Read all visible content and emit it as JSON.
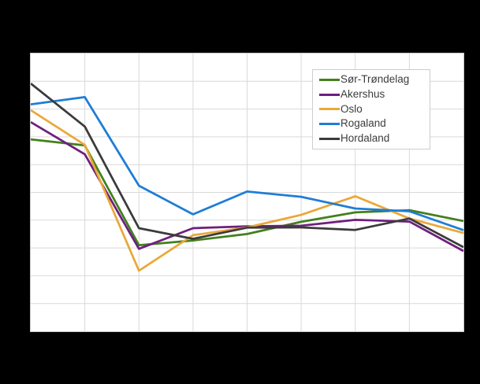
{
  "page": {
    "background_color": "#000000",
    "plot_background_color": "#ffffff",
    "grid_color": "#d9d9d9",
    "plot_border_color": "#c9c9c9",
    "legend_border_color": "#cccccc",
    "legend_text_color": "#3c3c3c"
  },
  "chart_data": {
    "type": "line",
    "title": "",
    "xlabel": "",
    "ylabel": "",
    "n_points": 9,
    "x_labels": [],
    "axis_tick_labels_visible": false,
    "values_unit": "gridline-units; 0 = bottom border, 10 = top border (no numeric tick labels are visible in the screenshot)",
    "ylim": [
      0,
      10
    ],
    "grid": true,
    "grid_x_divisions": 8,
    "grid_y_divisions": 10,
    "legend_position": "top-right",
    "line_width": 2.75,
    "series": [
      {
        "name": "Sør-Trøndelag",
        "color": "#43801e",
        "values": [
          6.91,
          6.69,
          3.1,
          3.27,
          3.5,
          3.94,
          4.28,
          4.36,
          3.97
        ]
      },
      {
        "name": "Akershus",
        "color": "#6f1e7f",
        "values": [
          7.53,
          6.37,
          2.97,
          3.71,
          3.78,
          3.8,
          4.01,
          3.95,
          2.89
        ]
      },
      {
        "name": "Oslo",
        "color": "#eaa838",
        "values": [
          7.96,
          6.71,
          2.18,
          3.46,
          3.74,
          4.19,
          4.86,
          4.06,
          3.54
        ]
      },
      {
        "name": "Rogaland",
        "color": "#1f7dd6",
        "values": [
          8.17,
          8.43,
          5.24,
          4.21,
          5.03,
          4.84,
          4.42,
          4.32,
          3.64
        ]
      },
      {
        "name": "Hordaland",
        "color": "#3b3b3b",
        "values": [
          8.92,
          7.37,
          3.71,
          3.33,
          3.73,
          3.74,
          3.65,
          4.06,
          3.03
        ]
      }
    ]
  }
}
